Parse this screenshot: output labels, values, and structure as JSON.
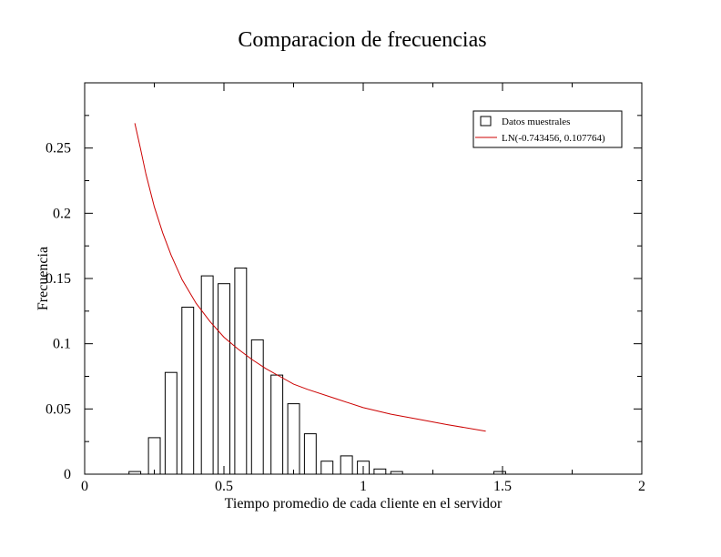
{
  "chart_data": {
    "type": "bar",
    "title": "Comparacion de frecuencias",
    "xlabel": "Tiempo promedio de cada cliente en el servidor",
    "ylabel": "Frecuencia",
    "xlim": [
      0,
      2
    ],
    "ylim": [
      0,
      0.3
    ],
    "x_ticks": [
      {
        "value": 0,
        "label": "0"
      },
      {
        "value": 0.5,
        "label": "0.5"
      },
      {
        "value": 1,
        "label": "1"
      },
      {
        "value": 1.5,
        "label": "1.5"
      },
      {
        "value": 2,
        "label": "2"
      }
    ],
    "y_ticks": [
      {
        "value": 0,
        "label": "0"
      },
      {
        "value": 0.05,
        "label": "0.05"
      },
      {
        "value": 0.1,
        "label": "0.1"
      },
      {
        "value": 0.15,
        "label": "0.15"
      },
      {
        "value": 0.2,
        "label": "0.2"
      },
      {
        "value": 0.25,
        "label": "0.25"
      }
    ],
    "grid": false,
    "legend": {
      "position": "top-right",
      "entries": [
        {
          "label": "Datos muestrales",
          "kind": "box",
          "color": "#000000"
        },
        {
          "label": "LN(-0.743456, 0.107764)",
          "kind": "line",
          "color": "#cc0000"
        }
      ]
    },
    "series": [
      {
        "name": "Datos muestrales",
        "kind": "histogram",
        "color": "#000000",
        "bin_width": 0.05,
        "bins": [
          {
            "x": 0.18,
            "y": 0.002
          },
          {
            "x": 0.25,
            "y": 0.028
          },
          {
            "x": 0.31,
            "y": 0.078
          },
          {
            "x": 0.37,
            "y": 0.128
          },
          {
            "x": 0.44,
            "y": 0.152
          },
          {
            "x": 0.5,
            "y": 0.146
          },
          {
            "x": 0.56,
            "y": 0.158
          },
          {
            "x": 0.62,
            "y": 0.103
          },
          {
            "x": 0.69,
            "y": 0.076
          },
          {
            "x": 0.75,
            "y": 0.054
          },
          {
            "x": 0.81,
            "y": 0.031
          },
          {
            "x": 0.87,
            "y": 0.01
          },
          {
            "x": 0.94,
            "y": 0.014
          },
          {
            "x": 1.0,
            "y": 0.01
          },
          {
            "x": 1.06,
            "y": 0.004
          },
          {
            "x": 1.12,
            "y": 0.002
          },
          {
            "x": 1.49,
            "y": 0.002
          }
        ]
      },
      {
        "name": "LN(-0.743456, 0.107764)",
        "kind": "line",
        "color": "#cc0000",
        "points": [
          {
            "x": 0.18,
            "y": 0.269
          },
          {
            "x": 0.2,
            "y": 0.25
          },
          {
            "x": 0.22,
            "y": 0.23
          },
          {
            "x": 0.25,
            "y": 0.205
          },
          {
            "x": 0.28,
            "y": 0.185
          },
          {
            "x": 0.31,
            "y": 0.168
          },
          {
            "x": 0.35,
            "y": 0.149
          },
          {
            "x": 0.4,
            "y": 0.131
          },
          {
            "x": 0.45,
            "y": 0.117
          },
          {
            "x": 0.5,
            "y": 0.105
          },
          {
            "x": 0.55,
            "y": 0.096
          },
          {
            "x": 0.6,
            "y": 0.088
          },
          {
            "x": 0.65,
            "y": 0.081
          },
          {
            "x": 0.7,
            "y": 0.075
          },
          {
            "x": 0.75,
            "y": 0.069
          },
          {
            "x": 0.8,
            "y": 0.065
          },
          {
            "x": 0.9,
            "y": 0.058
          },
          {
            "x": 1.0,
            "y": 0.051
          },
          {
            "x": 1.1,
            "y": 0.046
          },
          {
            "x": 1.2,
            "y": 0.042
          },
          {
            "x": 1.3,
            "y": 0.038
          },
          {
            "x": 1.44,
            "y": 0.033
          }
        ]
      }
    ]
  }
}
